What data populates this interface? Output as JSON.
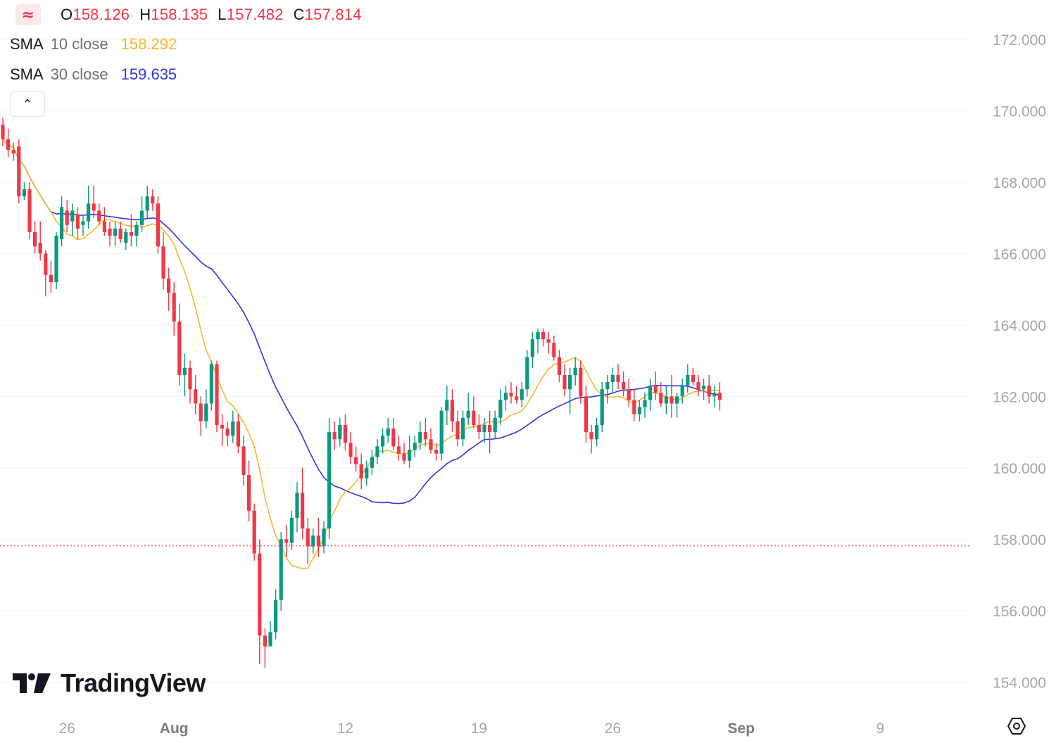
{
  "ohlc": [
    {
      "key": "O",
      "value": "158.126"
    },
    {
      "key": "H",
      "value": "158.135"
    },
    {
      "key": "L",
      "value": "157.482"
    },
    {
      "key": "C",
      "value": "157.814"
    }
  ],
  "legends": [
    {
      "name": "SMA",
      "source": "10 close",
      "value": "158.292",
      "color": "#f5b82e"
    },
    {
      "name": "SMA",
      "source": "30 close",
      "value": "159.635",
      "color": "#3333e0"
    }
  ],
  "brand": {
    "name": "TradingView"
  },
  "colors": {
    "up": "#089981",
    "down": "#f23645",
    "sma10": "#f5b82e",
    "sma30": "#3333e0",
    "last_price_line": "#f23645",
    "grid": "#f0f3fa",
    "axis_text": "#a3a6af"
  },
  "icons": {
    "logo": "tradingview-logo-icon",
    "collapse": "chevron-up-icon",
    "settings": "gear-icon",
    "header": "wave-icon"
  },
  "chart_data": {
    "type": "candlestick",
    "ylim": [
      153.2,
      173.1
    ],
    "y_ticks": [
      "172.000",
      "170.000",
      "168.000",
      "166.000",
      "164.000",
      "162.000",
      "160.000",
      "158.000",
      "156.000",
      "154.000"
    ],
    "x_ticks": [
      {
        "label": "26",
        "index": 12
      },
      {
        "label": "Aug",
        "index": 32
      },
      {
        "label": "12",
        "index": 64
      },
      {
        "label": "19",
        "index": 89
      },
      {
        "label": "26",
        "index": 114
      },
      {
        "label": "Sep",
        "index": 138
      },
      {
        "label": "9",
        "index": 164
      }
    ],
    "last_price": 157.814,
    "candles": [
      [
        169.6,
        169.8,
        169.0,
        169.2
      ],
      [
        169.2,
        169.5,
        168.7,
        168.9
      ],
      [
        168.9,
        169.1,
        168.6,
        168.8
      ],
      [
        169.0,
        169.2,
        167.4,
        167.6
      ],
      [
        167.6,
        168.0,
        167.5,
        167.8
      ],
      [
        167.8,
        168.0,
        166.4,
        166.6
      ],
      [
        166.6,
        166.9,
        166.0,
        166.2
      ],
      [
        166.3,
        166.9,
        165.8,
        166.0
      ],
      [
        166.0,
        166.1,
        164.8,
        165.4
      ],
      [
        165.4,
        165.8,
        164.9,
        165.2
      ],
      [
        165.2,
        166.6,
        165.0,
        166.5
      ],
      [
        166.4,
        167.6,
        166.2,
        167.3
      ],
      [
        167.2,
        167.5,
        166.6,
        166.8
      ],
      [
        166.9,
        167.4,
        166.5,
        167.2
      ],
      [
        167.1,
        167.3,
        166.4,
        166.7
      ],
      [
        166.8,
        167.1,
        166.5,
        166.9
      ],
      [
        166.9,
        167.9,
        166.7,
        167.4
      ],
      [
        167.4,
        167.9,
        167.0,
        167.2
      ],
      [
        167.2,
        167.4,
        166.8,
        166.9
      ],
      [
        166.9,
        167.3,
        166.5,
        166.6
      ],
      [
        166.7,
        166.9,
        166.2,
        166.5
      ],
      [
        166.5,
        166.9,
        166.2,
        166.7
      ],
      [
        166.7,
        166.9,
        166.3,
        166.4
      ],
      [
        166.3,
        166.7,
        166.1,
        166.6
      ],
      [
        166.6,
        167.1,
        166.2,
        166.5
      ],
      [
        166.5,
        166.9,
        166.2,
        166.8
      ],
      [
        166.8,
        167.6,
        166.6,
        167.2
      ],
      [
        167.2,
        167.9,
        167.0,
        167.6
      ],
      [
        167.6,
        167.8,
        167.2,
        167.4
      ],
      [
        167.4,
        167.6,
        166.0,
        166.2
      ],
      [
        166.2,
        166.6,
        165.0,
        165.3
      ],
      [
        165.3,
        165.6,
        164.4,
        164.9
      ],
      [
        164.9,
        165.2,
        163.7,
        164.1
      ],
      [
        164.1,
        164.6,
        162.3,
        162.6
      ],
      [
        162.6,
        163.2,
        162.0,
        162.8
      ],
      [
        162.8,
        163.0,
        161.8,
        162.2
      ],
      [
        162.2,
        162.6,
        161.5,
        161.8
      ],
      [
        161.8,
        162.0,
        160.9,
        161.3
      ],
      [
        161.3,
        162.2,
        161.1,
        161.8
      ],
      [
        161.8,
        163.0,
        161.6,
        162.9
      ],
      [
        162.9,
        163.0,
        161.0,
        161.2
      ],
      [
        161.2,
        161.5,
        160.6,
        161.1
      ],
      [
        161.1,
        161.3,
        160.6,
        160.9
      ],
      [
        160.9,
        161.6,
        160.7,
        161.3
      ],
      [
        161.3,
        161.5,
        160.4,
        160.6
      ],
      [
        160.6,
        160.9,
        159.5,
        159.8
      ],
      [
        159.8,
        160.2,
        158.5,
        158.8
      ],
      [
        158.8,
        159.0,
        157.4,
        157.6
      ],
      [
        157.6,
        158.0,
        154.5,
        155.3
      ],
      [
        155.3,
        155.5,
        154.4,
        155.0
      ],
      [
        155.0,
        155.7,
        155.1,
        155.4
      ],
      [
        155.4,
        156.6,
        155.2,
        156.3
      ],
      [
        156.3,
        158.2,
        156.0,
        158.0
      ],
      [
        158.0,
        158.4,
        157.5,
        157.9
      ],
      [
        157.9,
        158.8,
        157.7,
        158.6
      ],
      [
        158.6,
        159.6,
        158.2,
        159.3
      ],
      [
        159.3,
        160.0,
        158.0,
        158.3
      ],
      [
        158.3,
        158.6,
        157.3,
        157.8
      ],
      [
        157.8,
        158.3,
        157.6,
        158.1
      ],
      [
        158.1,
        158.6,
        157.5,
        157.8
      ],
      [
        157.8,
        158.5,
        157.6,
        158.3
      ],
      [
        158.3,
        161.4,
        158.0,
        161.0
      ],
      [
        161.0,
        161.3,
        160.5,
        160.8
      ],
      [
        160.8,
        161.4,
        160.6,
        161.2
      ],
      [
        161.2,
        161.5,
        160.5,
        160.7
      ],
      [
        160.7,
        161.0,
        160.1,
        160.3
      ],
      [
        160.3,
        160.6,
        159.9,
        160.1
      ],
      [
        160.1,
        160.4,
        159.4,
        159.7
      ],
      [
        159.7,
        160.2,
        159.5,
        160.0
      ],
      [
        160.0,
        160.5,
        159.8,
        160.3
      ],
      [
        160.3,
        160.8,
        160.1,
        160.6
      ],
      [
        160.6,
        161.1,
        160.4,
        160.9
      ],
      [
        160.9,
        161.4,
        160.7,
        161.1
      ],
      [
        161.1,
        161.4,
        160.5,
        160.6
      ],
      [
        160.6,
        160.9,
        160.2,
        160.4
      ],
      [
        160.4,
        160.7,
        160.1,
        160.2
      ],
      [
        160.2,
        160.9,
        160.0,
        160.5
      ],
      [
        160.5,
        160.9,
        160.3,
        160.7
      ],
      [
        160.7,
        161.3,
        160.5,
        161.0
      ],
      [
        161.0,
        161.4,
        160.6,
        160.8
      ],
      [
        160.8,
        161.1,
        160.4,
        160.5
      ],
      [
        160.5,
        160.7,
        160.2,
        160.4
      ],
      [
        160.4,
        161.7,
        160.2,
        161.6
      ],
      [
        161.6,
        162.3,
        161.2,
        161.9
      ],
      [
        161.9,
        162.2,
        161.0,
        161.3
      ],
      [
        161.3,
        161.6,
        160.6,
        160.8
      ],
      [
        160.8,
        161.6,
        160.6,
        161.4
      ],
      [
        161.4,
        162.1,
        161.2,
        161.6
      ],
      [
        161.6,
        162.0,
        161.1,
        161.2
      ],
      [
        161.2,
        161.5,
        160.8,
        161.0
      ],
      [
        161.0,
        161.4,
        160.7,
        161.2
      ],
      [
        161.2,
        161.6,
        160.4,
        161.0
      ],
      [
        161.0,
        161.6,
        160.8,
        161.4
      ],
      [
        161.4,
        162.2,
        161.2,
        161.9
      ],
      [
        161.9,
        162.3,
        161.6,
        162.1
      ],
      [
        162.1,
        162.4,
        161.8,
        162.0
      ],
      [
        162.0,
        162.3,
        161.8,
        161.9
      ],
      [
        161.9,
        162.4,
        161.7,
        162.2
      ],
      [
        162.2,
        163.3,
        162.0,
        163.1
      ],
      [
        163.1,
        163.8,
        162.8,
        163.6
      ],
      [
        163.6,
        163.9,
        163.2,
        163.8
      ],
      [
        163.8,
        163.9,
        163.4,
        163.6
      ],
      [
        163.6,
        163.8,
        163.2,
        163.5
      ],
      [
        163.5,
        163.7,
        163.0,
        163.1
      ],
      [
        163.1,
        163.3,
        162.4,
        162.6
      ],
      [
        162.6,
        162.9,
        162.0,
        162.2
      ],
      [
        162.2,
        162.8,
        161.5,
        162.6
      ],
      [
        162.6,
        163.1,
        162.3,
        162.8
      ],
      [
        162.8,
        163.0,
        161.8,
        162.0
      ],
      [
        162.0,
        162.3,
        160.7,
        161.0
      ],
      [
        161.0,
        161.2,
        160.4,
        160.8
      ],
      [
        160.8,
        161.4,
        160.6,
        161.2
      ],
      [
        161.2,
        162.4,
        161.0,
        162.2
      ],
      [
        162.2,
        162.6,
        161.8,
        162.4
      ],
      [
        162.4,
        162.8,
        162.1,
        162.6
      ],
      [
        162.6,
        162.9,
        162.2,
        162.4
      ],
      [
        162.4,
        162.7,
        162.0,
        162.2
      ],
      [
        162.2,
        162.5,
        161.7,
        161.9
      ],
      [
        161.9,
        162.2,
        161.3,
        161.5
      ],
      [
        161.5,
        161.9,
        161.3,
        161.7
      ],
      [
        161.7,
        162.1,
        161.4,
        161.9
      ],
      [
        161.9,
        162.5,
        161.6,
        162.3
      ],
      [
        162.3,
        162.7,
        161.9,
        162.1
      ],
      [
        162.1,
        162.4,
        161.7,
        161.8
      ],
      [
        161.8,
        162.3,
        161.5,
        162.0
      ],
      [
        162.0,
        162.6,
        161.4,
        161.8
      ],
      [
        161.8,
        162.1,
        161.4,
        162.0
      ],
      [
        162.0,
        162.5,
        161.8,
        162.3
      ],
      [
        162.3,
        162.9,
        162.1,
        162.6
      ],
      [
        162.6,
        162.8,
        162.3,
        162.4
      ],
      [
        162.4,
        162.6,
        162.0,
        162.2
      ],
      [
        162.2,
        162.5,
        161.9,
        162.3
      ],
      [
        162.3,
        162.6,
        161.8,
        162.0
      ],
      [
        162.0,
        162.3,
        161.7,
        162.1
      ],
      [
        162.1,
        162.4,
        161.6,
        161.9
      ]
    ],
    "sma10": {
      "name": "SMA 10 close",
      "color": "#f5b82e",
      "values": []
    },
    "sma30": {
      "name": "SMA 30 close",
      "color": "#3333e0",
      "values": []
    }
  }
}
